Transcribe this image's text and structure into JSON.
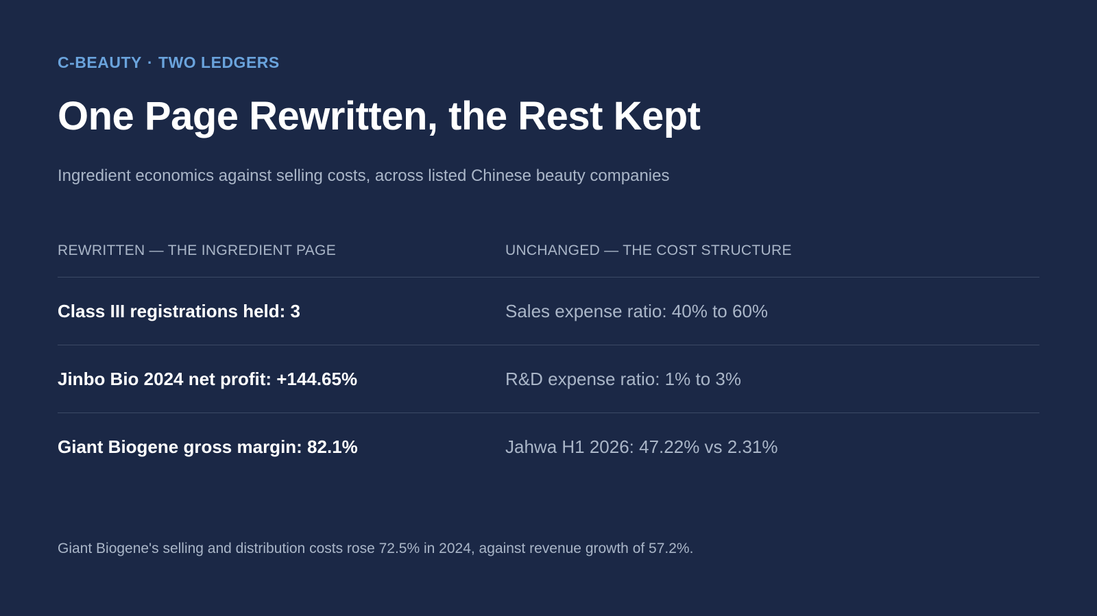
{
  "header": {
    "kicker_left": "C-BEAUTY",
    "kicker_separator": "·",
    "kicker_right": "TWO LEDGERS",
    "title": "One Page Rewritten, the Rest Kept",
    "subtitle": "Ingredient economics against selling costs, across listed Chinese beauty companies"
  },
  "ledger": {
    "columns": [
      "REWRITTEN — THE INGREDIENT PAGE",
      "UNCHANGED — THE COST STRUCTURE"
    ],
    "rows": [
      {
        "left": "Class III registrations held: 3",
        "right": "Sales expense ratio: 40% to 60%"
      },
      {
        "left": "Jinbo Bio 2024 net profit: +144.65%",
        "right": "R&D expense ratio: 1% to 3%"
      },
      {
        "left": "Giant Biogene gross margin: 82.1%",
        "right": "Jahwa H1 2026: 47.22% vs 2.31%"
      }
    ]
  },
  "footnote": "Giant Biogene's selling and distribution costs rose 72.5% in 2024, against revenue growth of 57.2%.",
  "colors": {
    "background": "#1b2846",
    "accent": "#6aa3dc",
    "muted_text": "#aab6c8",
    "divider": "#3c4a66"
  }
}
